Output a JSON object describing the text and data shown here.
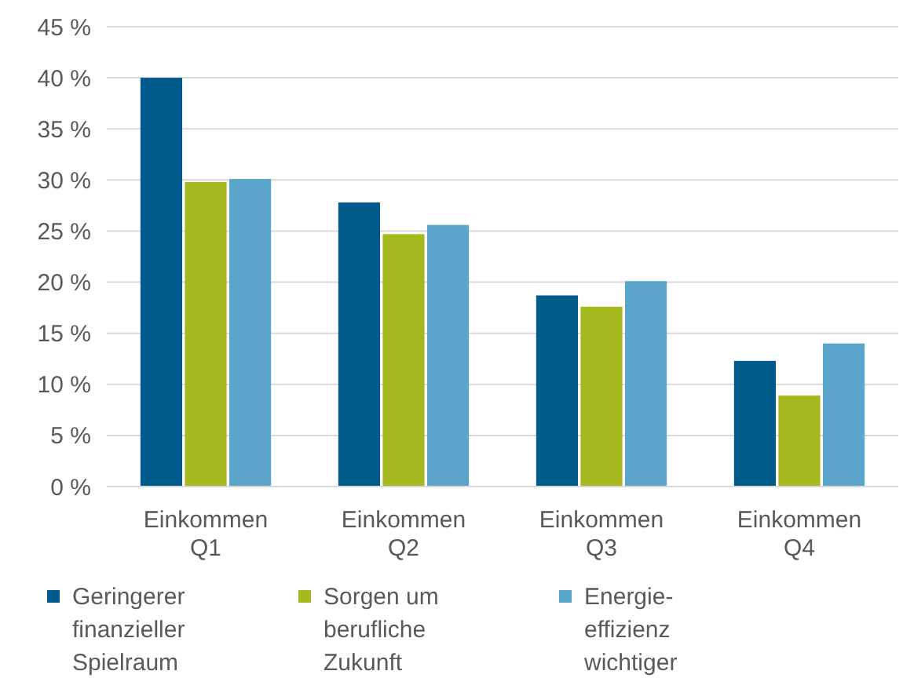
{
  "chart_data": {
    "type": "bar",
    "categories": [
      "Einkommen Q1",
      "Einkommen Q2",
      "Einkommen Q3",
      "Einkommen Q4"
    ],
    "series": [
      {
        "name": "Geringerer finanzieller Spielraum",
        "color": "#005b8c",
        "values": [
          40,
          27.8,
          18.7,
          12.3
        ]
      },
      {
        "name": "Sorgen um berufliche Zukunft",
        "color": "#a5b81d",
        "values": [
          29.8,
          24.7,
          17.6,
          8.9
        ]
      },
      {
        "name": "Energie-effizienz wichtiger",
        "color": "#5ba5cb",
        "values": [
          30.1,
          25.6,
          20.1,
          14
        ]
      }
    ],
    "ylim": [
      0,
      45
    ],
    "yticks": [
      {
        "value": 0,
        "label": "0 %"
      },
      {
        "value": 5,
        "label": "5 %"
      },
      {
        "value": 10,
        "label": "10 %"
      },
      {
        "value": 15,
        "label": "15 %"
      },
      {
        "value": 20,
        "label": "20 %"
      },
      {
        "value": 25,
        "label": "25 %"
      },
      {
        "value": 30,
        "label": "30 %"
      },
      {
        "value": 35,
        "label": "35 %"
      },
      {
        "value": 40,
        "label": "40 %"
      },
      {
        "value": 45,
        "label": "45 %"
      }
    ],
    "grid": "y",
    "legend": "bottom"
  }
}
